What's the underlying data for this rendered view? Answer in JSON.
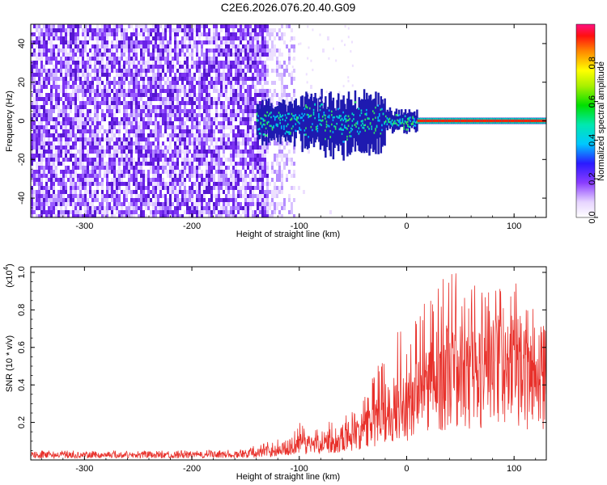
{
  "title": "C2E6.2026.076.20.40.G09",
  "colors": {
    "snr_line": "#e8302a",
    "noise_purple": "#6a22e8",
    "background": "#ffffff"
  },
  "chart_data": [
    {
      "type": "heatmap",
      "xlabel": "Height of straight line (km)",
      "ylabel": "Frequency (Hz)",
      "xlim": [
        -350,
        130
      ],
      "ylim": [
        -50,
        50
      ],
      "xticks": [
        -300,
        -200,
        -100,
        0,
        100
      ],
      "yticks": [
        -40,
        -20,
        0,
        20,
        40
      ],
      "xtick_labels": [
        "-300",
        "-200",
        "-100",
        "0",
        "100"
      ],
      "ytick_labels": [
        "-40",
        "-20",
        "0",
        "20",
        "40"
      ],
      "colorbar": {
        "label": "Normalized spectral amplitude",
        "range": [
          0.0,
          1.0
        ],
        "ticks": [
          0.0,
          0.2,
          0.4,
          0.6,
          0.8
        ],
        "tick_labels": [
          "0.0",
          "0.2",
          "0.4",
          "0.6",
          "0.8"
        ]
      },
      "features": {
        "noise_region_x": [
          -350,
          -110
        ],
        "signal_center_freq": 0,
        "signal_onset_x": -140,
        "strong_tone_from_x": 10
      }
    },
    {
      "type": "line",
      "xlabel": "Height of straight line (km)",
      "ylabel": "SNR (10 * v/v)",
      "y_multiplier": "(x10",
      "y_multiplier_exp": "4",
      "y_multiplier_close": ")",
      "xlim": [
        -350,
        130
      ],
      "ylim": [
        0,
        1.03
      ],
      "xticks": [
        -300,
        -200,
        -100,
        0,
        100
      ],
      "yticks": [
        0.2,
        0.4,
        0.6,
        0.8,
        1.0
      ],
      "xtick_labels": [
        "-300",
        "-200",
        "-100",
        "0",
        "100"
      ],
      "ytick_labels": [
        "0.2",
        "0.4",
        "0.6",
        "0.8",
        "1.0"
      ],
      "series": [
        {
          "name": "SNR",
          "envelope_x": [
            -350,
            -200,
            -150,
            -120,
            -100,
            -80,
            -60,
            -40,
            -20,
            0,
            20,
            40,
            60,
            80,
            100,
            120,
            130
          ],
          "envelope_mean": [
            0.03,
            0.03,
            0.035,
            0.06,
            0.1,
            0.1,
            0.14,
            0.18,
            0.3,
            0.33,
            0.45,
            0.55,
            0.5,
            0.55,
            0.55,
            0.5,
            0.55
          ],
          "envelope_peak": [
            0.05,
            0.05,
            0.06,
            0.12,
            0.2,
            0.18,
            0.25,
            0.32,
            0.65,
            0.72,
            0.92,
            1.03,
            0.95,
            0.9,
            0.97,
            0.8,
            0.7
          ]
        }
      ]
    }
  ]
}
